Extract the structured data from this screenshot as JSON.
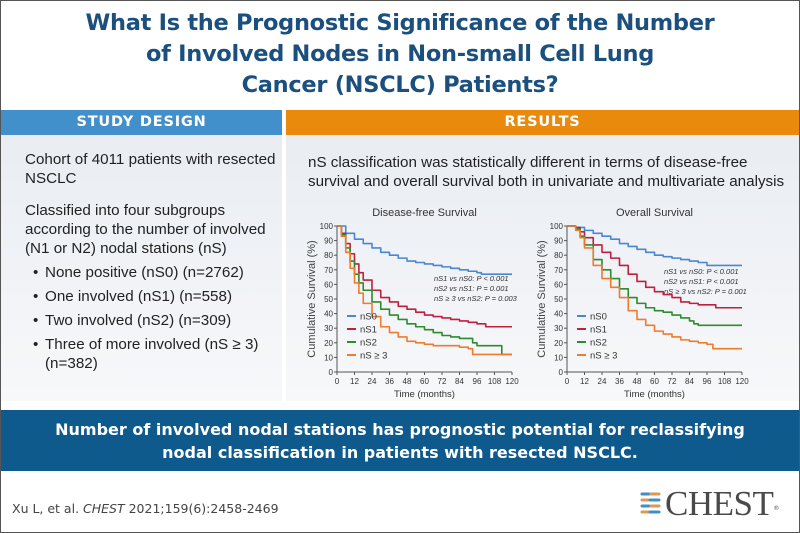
{
  "title": {
    "line1": "What Is the Prognostic Significance of the Number",
    "line2": "of Involved Nodes in Non-small Cell Lung",
    "line3": "Cancer (NSCLC) Patients?"
  },
  "colors": {
    "title": "#1b4f7e",
    "study_header": "#4190cb",
    "results_header": "#ea8a0c",
    "banner": "#0f5a8d",
    "nS0": "#4a86d4",
    "nS1": "#c21f3f",
    "nS2": "#2e8b2e",
    "nS3": "#ef7b2e"
  },
  "study_design": {
    "header": "STUDY DESIGN",
    "para1": "Cohort of 4011 patients with resected NSCLC",
    "para2": "Classified into four subgroups according to the number of involved (N1 or N2) nodal stations (nS)",
    "bullets": [
      "None positive (nS0) (n=2762)",
      "One involved (nS1) (n=558)",
      "Two involved (nS2) (n=309)",
      "Three of more involved (nS ≥ 3) (n=382)"
    ],
    "bullet_glyph": "•"
  },
  "results": {
    "header": "RESULTS",
    "text": "nS classification was statistically different in terms of disease-free survival and overall survival both in univariate and multivariate analysis"
  },
  "chart_data": [
    {
      "type": "line",
      "title": "Disease-free Survival",
      "xlabel": "Time (months)",
      "ylabel": "Cumulative Survival (%)",
      "xlim": [
        0,
        120
      ],
      "ylim": [
        0,
        100
      ],
      "xticks": [
        0,
        12,
        24,
        36,
        48,
        60,
        72,
        84,
        96,
        108,
        120
      ],
      "yticks": [
        0,
        10,
        20,
        30,
        40,
        50,
        60,
        70,
        80,
        90,
        100
      ],
      "grid": false,
      "legend": "bottom-left",
      "annotations": [
        "nS1 vs nS0: P < 0.001",
        "nS2 vs nS1: P = 0.001",
        "nS ≥ 3 vs nS2: P = 0.003"
      ],
      "series": [
        {
          "name": "nS0",
          "color_key": "nS0",
          "x": [
            0,
            6,
            12,
            18,
            24,
            30,
            36,
            42,
            48,
            54,
            60,
            66,
            72,
            78,
            84,
            90,
            96,
            99,
            108,
            120
          ],
          "values": [
            100,
            95,
            91,
            88,
            85,
            82,
            80,
            78,
            76,
            75,
            74,
            73,
            72,
            71,
            70,
            69,
            68,
            67,
            67,
            67
          ]
        },
        {
          "name": "nS1",
          "color_key": "nS1",
          "x": [
            0,
            3,
            6,
            9,
            12,
            15,
            18,
            24,
            30,
            36,
            42,
            48,
            54,
            60,
            66,
            72,
            78,
            84,
            90,
            96,
            102,
            108,
            120
          ],
          "values": [
            100,
            95,
            88,
            81,
            74,
            68,
            63,
            56,
            51,
            48,
            45,
            43,
            41,
            39,
            38,
            37,
            36,
            35,
            34,
            33,
            31,
            31,
            31
          ]
        },
        {
          "name": "nS2",
          "color_key": "nS2",
          "x": [
            0,
            3,
            6,
            9,
            12,
            15,
            18,
            24,
            30,
            36,
            42,
            48,
            54,
            60,
            66,
            72,
            78,
            84,
            90,
            93,
            96,
            108,
            112,
            113,
            120
          ],
          "values": [
            100,
            94,
            85,
            76,
            67,
            61,
            56,
            48,
            43,
            39,
            36,
            33,
            31,
            29,
            27,
            25,
            24,
            23,
            23,
            20,
            18,
            18,
            18,
            12,
            12
          ]
        },
        {
          "name": "nS ≥ 3",
          "color_key": "nS3",
          "x": [
            0,
            3,
            6,
            9,
            12,
            15,
            18,
            24,
            30,
            36,
            42,
            48,
            54,
            60,
            66,
            72,
            78,
            84,
            90,
            93,
            96,
            108,
            120
          ],
          "values": [
            100,
            93,
            82,
            71,
            61,
            54,
            47,
            38,
            31,
            27,
            24,
            21,
            20,
            19,
            18,
            18,
            18,
            17,
            16,
            12,
            12,
            12,
            12
          ]
        }
      ]
    },
    {
      "type": "line",
      "title": "Overall Survival",
      "xlabel": "Time (months)",
      "ylabel": "Cumulative Survival (%)",
      "xlim": [
        0,
        120
      ],
      "ylim": [
        0,
        100
      ],
      "xticks": [
        0,
        12,
        24,
        36,
        48,
        60,
        72,
        84,
        96,
        108,
        120
      ],
      "yticks": [
        0,
        10,
        20,
        30,
        40,
        50,
        60,
        70,
        80,
        90,
        100
      ],
      "grid": false,
      "legend": "bottom-left",
      "annotations": [
        "nS1 vs nS0: P < 0.001",
        "nS2 vs nS1: P < 0.001",
        "nS ≥ 3 vs nS2: P = 0.001"
      ],
      "series": [
        {
          "name": "nS0",
          "color_key": "nS0",
          "x": [
            0,
            6,
            12,
            18,
            24,
            30,
            36,
            42,
            48,
            54,
            60,
            66,
            72,
            78,
            84,
            90,
            96,
            108,
            120
          ],
          "values": [
            100,
            99,
            97,
            95,
            93,
            91,
            88,
            86,
            84,
            82,
            80,
            79,
            78,
            77,
            76,
            75,
            73,
            73,
            73
          ]
        },
        {
          "name": "nS1",
          "color_key": "nS1",
          "x": [
            0,
            6,
            9,
            12,
            18,
            24,
            30,
            36,
            42,
            48,
            54,
            60,
            66,
            72,
            78,
            84,
            90,
            96,
            102,
            108,
            120
          ],
          "values": [
            100,
            99,
            96,
            92,
            87,
            82,
            78,
            73,
            67,
            62,
            58,
            55,
            53,
            51,
            48,
            47,
            46,
            46,
            44,
            44,
            44
          ]
        },
        {
          "name": "nS2",
          "color_key": "nS2",
          "x": [
            0,
            6,
            9,
            12,
            18,
            24,
            30,
            36,
            42,
            48,
            54,
            60,
            66,
            72,
            78,
            84,
            87,
            90,
            96,
            108,
            120
          ],
          "values": [
            100,
            98,
            93,
            87,
            77,
            70,
            64,
            57,
            51,
            47,
            44,
            42,
            41,
            39,
            37,
            35,
            33,
            32,
            32,
            32,
            32
          ]
        },
        {
          "name": "nS ≥ 3",
          "color_key": "nS3",
          "x": [
            0,
            6,
            9,
            12,
            18,
            24,
            30,
            36,
            42,
            48,
            54,
            60,
            66,
            72,
            78,
            84,
            90,
            96,
            100,
            108,
            120
          ],
          "values": [
            100,
            97,
            92,
            85,
            73,
            64,
            58,
            51,
            42,
            36,
            32,
            28,
            26,
            24,
            22,
            21,
            20,
            19,
            16,
            16,
            16
          ]
        }
      ]
    }
  ],
  "banner": {
    "line1": "Number of involved nodal stations has prognostic potential for reclassifying",
    "line2": "nodal classification in patients with resected NSCLC."
  },
  "citation": {
    "authors": "Xu L, et al. ",
    "journal": "CHEST",
    "details": " 2021;159(6):2458-2469"
  },
  "logo": {
    "text": "CHEST",
    "reg": "®"
  }
}
